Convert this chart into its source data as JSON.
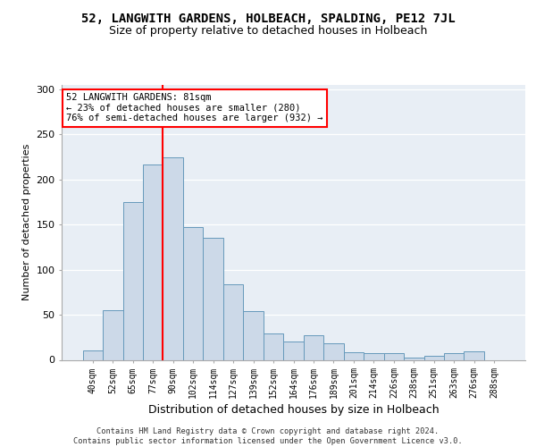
{
  "title": "52, LANGWITH GARDENS, HOLBEACH, SPALDING, PE12 7JL",
  "subtitle": "Size of property relative to detached houses in Holbeach",
  "xlabel": "Distribution of detached houses by size in Holbeach",
  "ylabel": "Number of detached properties",
  "categories": [
    "40sqm",
    "52sqm",
    "65sqm",
    "77sqm",
    "90sqm",
    "102sqm",
    "114sqm",
    "127sqm",
    "139sqm",
    "152sqm",
    "164sqm",
    "176sqm",
    "189sqm",
    "201sqm",
    "214sqm",
    "226sqm",
    "238sqm",
    "251sqm",
    "263sqm",
    "276sqm",
    "288sqm"
  ],
  "values": [
    10,
    55,
    175,
    217,
    225,
    147,
    135,
    84,
    54,
    29,
    20,
    27,
    18,
    8,
    7,
    7,
    2,
    4,
    7,
    9,
    0
  ],
  "bar_color": "#ccd9e8",
  "bar_edge_color": "#6699bb",
  "red_line_x": 3.5,
  "annotation_line1": "52 LANGWITH GARDENS: 81sqm",
  "annotation_line2": "← 23% of detached houses are smaller (280)",
  "annotation_line3": "76% of semi-detached houses are larger (932) →",
  "footer_line1": "Contains HM Land Registry data © Crown copyright and database right 2024.",
  "footer_line2": "Contains public sector information licensed under the Open Government Licence v3.0.",
  "ylim": [
    0,
    305
  ],
  "yticks": [
    0,
    50,
    100,
    150,
    200,
    250,
    300
  ],
  "bg_color": "#e8eef5",
  "grid_color": "#ffffff",
  "title_fontsize": 10,
  "subtitle_fontsize": 9,
  "tick_fontsize": 7,
  "ylabel_fontsize": 8,
  "xlabel_fontsize": 9
}
